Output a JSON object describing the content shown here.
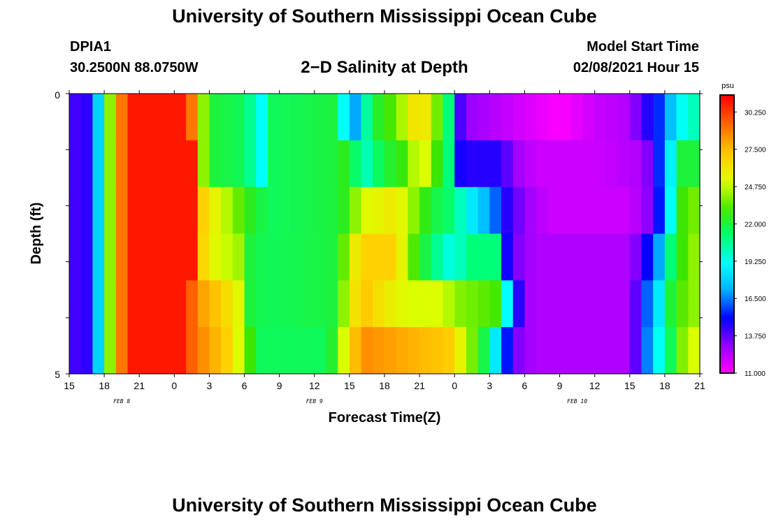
{
  "header": {
    "title": "University of Southern Mississippi Ocean Cube",
    "station": "DPIA1",
    "coords": "30.2500N 88.0750W",
    "subtitle": "2−D Salinity at Depth",
    "model_start_label": "Model Start Time",
    "model_start_value": "02/08/2021 Hour 15"
  },
  "footer": {
    "title": "University of Southern Mississippi Ocean Cube"
  },
  "chart_data": {
    "type": "heatmap",
    "title": "2-D Salinity at Depth",
    "xlabel": "Forecast Time(Z)",
    "ylabel": "Depth (ft)",
    "y_ticks": [
      "0",
      "5"
    ],
    "ylim": [
      0,
      5
    ],
    "x_tick_labels": [
      "15",
      "18",
      "21",
      "0",
      "3",
      "6",
      "9",
      "12",
      "15",
      "18",
      "21",
      "0",
      "3",
      "6",
      "9",
      "12",
      "15",
      "18",
      "21"
    ],
    "date_labels": [
      {
        "text": "FEB 8",
        "tick_index": 1.5
      },
      {
        "text": "FEB 9",
        "tick_index": 7
      },
      {
        "text": "FEB 10",
        "tick_index": 14.5
      }
    ],
    "hours_total": 54,
    "colorbar": {
      "unit": "psu",
      "min": 11.0,
      "max": 31.5,
      "tick_values": [
        30.25,
        27.5,
        24.75,
        22.0,
        19.25,
        16.5,
        13.75,
        11.0
      ],
      "tick_labels": [
        "30.250",
        "27.500",
        "24.750",
        "22.000",
        "19.250",
        "16.500",
        "13.750",
        "11.000"
      ]
    },
    "depth_layers": [
      [
        {
          "h": 0,
          "v": 14.0
        },
        {
          "h": 2,
          "v": 14.5
        },
        {
          "h": 2.5,
          "v": 18
        },
        {
          "h": 3.5,
          "v": 24
        },
        {
          "h": 4.5,
          "v": 29
        },
        {
          "h": 5.5,
          "v": 31
        },
        {
          "h": 10,
          "v": 31
        },
        {
          "h": 10.5,
          "v": 29
        },
        {
          "h": 11.5,
          "v": 24
        },
        {
          "h": 12.5,
          "v": 22
        },
        {
          "h": 15,
          "v": 21.5
        },
        {
          "h": 16.5,
          "v": 19
        },
        {
          "h": 17.5,
          "v": 21.5
        },
        {
          "h": 23,
          "v": 22
        },
        {
          "h": 23.5,
          "v": 19
        },
        {
          "h": 24.5,
          "v": 17
        },
        {
          "h": 25,
          "v": 19
        },
        {
          "h": 26,
          "v": 22
        },
        {
          "h": 28,
          "v": 23.5
        },
        {
          "h": 30,
          "v": 27
        },
        {
          "h": 31,
          "v": 25
        },
        {
          "h": 32.5,
          "v": 21
        },
        {
          "h": 33,
          "v": 15
        },
        {
          "h": 34,
          "v": 13
        },
        {
          "h": 36,
          "v": 12.5
        },
        {
          "h": 40,
          "v": 11.5
        },
        {
          "h": 42,
          "v": 11.0
        },
        {
          "h": 45,
          "v": 12
        },
        {
          "h": 48,
          "v": 12.5
        },
        {
          "h": 49,
          "v": 14
        },
        {
          "h": 50.5,
          "v": 15.5
        },
        {
          "h": 51.5,
          "v": 17.5
        },
        {
          "h": 53,
          "v": 20
        },
        {
          "h": 54,
          "v": 20
        }
      ],
      [
        {
          "h": 0,
          "v": 14.0
        },
        {
          "h": 2,
          "v": 14.5
        },
        {
          "h": 2.5,
          "v": 18
        },
        {
          "h": 3.5,
          "v": 24
        },
        {
          "h": 4.5,
          "v": 29
        },
        {
          "h": 5.5,
          "v": 31
        },
        {
          "h": 10.5,
          "v": 31
        },
        {
          "h": 11,
          "v": 29
        },
        {
          "h": 11.5,
          "v": 24
        },
        {
          "h": 12.5,
          "v": 22
        },
        {
          "h": 15,
          "v": 21.5
        },
        {
          "h": 16.5,
          "v": 19
        },
        {
          "h": 17.5,
          "v": 21.5
        },
        {
          "h": 23,
          "v": 22
        },
        {
          "h": 24,
          "v": 23
        },
        {
          "h": 25,
          "v": 19.5
        },
        {
          "h": 27,
          "v": 22
        },
        {
          "h": 29,
          "v": 23
        },
        {
          "h": 30,
          "v": 26
        },
        {
          "h": 31,
          "v": 24
        },
        {
          "h": 32.5,
          "v": 21
        },
        {
          "h": 33,
          "v": 15
        },
        {
          "h": 34,
          "v": 14.5
        },
        {
          "h": 37,
          "v": 14.5
        },
        {
          "h": 38,
          "v": 13
        },
        {
          "h": 40,
          "v": 12
        },
        {
          "h": 45,
          "v": 12
        },
        {
          "h": 49,
          "v": 12.5
        },
        {
          "h": 50,
          "v": 14
        },
        {
          "h": 51,
          "v": 17
        },
        {
          "h": 52.5,
          "v": 22
        },
        {
          "h": 54,
          "v": 22
        }
      ],
      [
        {
          "h": 0,
          "v": 14.0
        },
        {
          "h": 2,
          "v": 14.5
        },
        {
          "h": 2.5,
          "v": 18
        },
        {
          "h": 3.5,
          "v": 24
        },
        {
          "h": 4.5,
          "v": 29
        },
        {
          "h": 5.5,
          "v": 31
        },
        {
          "h": 10.5,
          "v": 31
        },
        {
          "h": 11,
          "v": 28
        },
        {
          "h": 12,
          "v": 26
        },
        {
          "h": 14,
          "v": 24
        },
        {
          "h": 16,
          "v": 22
        },
        {
          "h": 17.5,
          "v": 21.5
        },
        {
          "h": 23,
          "v": 22
        },
        {
          "h": 24,
          "v": 23
        },
        {
          "h": 25,
          "v": 25
        },
        {
          "h": 28,
          "v": 26
        },
        {
          "h": 31,
          "v": 22
        },
        {
          "h": 33,
          "v": 21
        },
        {
          "h": 34,
          "v": 19
        },
        {
          "h": 35,
          "v": 18
        },
        {
          "h": 36,
          "v": 17
        },
        {
          "h": 37.5,
          "v": 14.5
        },
        {
          "h": 39,
          "v": 13
        },
        {
          "h": 41,
          "v": 12
        },
        {
          "h": 48,
          "v": 12
        },
        {
          "h": 50,
          "v": 13.5
        },
        {
          "h": 51,
          "v": 17
        },
        {
          "h": 52.5,
          "v": 23
        },
        {
          "h": 54,
          "v": 24
        }
      ],
      [
        {
          "h": 0,
          "v": 14.0
        },
        {
          "h": 2,
          "v": 14.5
        },
        {
          "h": 2.5,
          "v": 18
        },
        {
          "h": 3.5,
          "v": 24
        },
        {
          "h": 4.5,
          "v": 29
        },
        {
          "h": 5.5,
          "v": 31
        },
        {
          "h": 10.5,
          "v": 31
        },
        {
          "h": 11,
          "v": 28
        },
        {
          "h": 12,
          "v": 25.5
        },
        {
          "h": 15,
          "v": 24
        },
        {
          "h": 15.5,
          "v": 22
        },
        {
          "h": 17,
          "v": 21.5
        },
        {
          "h": 23,
          "v": 22
        },
        {
          "h": 24,
          "v": 25
        },
        {
          "h": 25,
          "v": 27
        },
        {
          "h": 28,
          "v": 27
        },
        {
          "h": 29,
          "v": 24
        },
        {
          "h": 30,
          "v": 22.5
        },
        {
          "h": 32,
          "v": 20
        },
        {
          "h": 33,
          "v": 19
        },
        {
          "h": 34,
          "v": 21
        },
        {
          "h": 36.5,
          "v": 21
        },
        {
          "h": 37,
          "v": 16
        },
        {
          "h": 38,
          "v": 13.5
        },
        {
          "h": 39,
          "v": 13
        },
        {
          "h": 40,
          "v": 12.5
        },
        {
          "h": 48,
          "v": 12.5
        },
        {
          "h": 49,
          "v": 14
        },
        {
          "h": 50.5,
          "v": 17
        },
        {
          "h": 51.5,
          "v": 21
        },
        {
          "h": 53,
          "v": 24
        },
        {
          "h": 54,
          "v": 24
        }
      ],
      [
        {
          "h": 0,
          "v": 14.0
        },
        {
          "h": 2,
          "v": 14.5
        },
        {
          "h": 2.5,
          "v": 18
        },
        {
          "h": 3.5,
          "v": 24
        },
        {
          "h": 4.5,
          "v": 29
        },
        {
          "h": 5.5,
          "v": 31
        },
        {
          "h": 10,
          "v": 31
        },
        {
          "h": 10.5,
          "v": 29.5
        },
        {
          "h": 11.5,
          "v": 28
        },
        {
          "h": 13,
          "v": 27
        },
        {
          "h": 14,
          "v": 26
        },
        {
          "h": 15,
          "v": 24.5
        },
        {
          "h": 15.5,
          "v": 22
        },
        {
          "h": 17,
          "v": 21.5
        },
        {
          "h": 23,
          "v": 22
        },
        {
          "h": 23.5,
          "v": 24
        },
        {
          "h": 25,
          "v": 27.5
        },
        {
          "h": 27,
          "v": 26
        },
        {
          "h": 29,
          "v": 25
        },
        {
          "h": 32,
          "v": 25
        },
        {
          "h": 33,
          "v": 24
        },
        {
          "h": 37,
          "v": 23
        },
        {
          "h": 37.5,
          "v": 19
        },
        {
          "h": 38,
          "v": 16
        },
        {
          "h": 39,
          "v": 13
        },
        {
          "h": 40,
          "v": 12.5
        },
        {
          "h": 48,
          "v": 12.5
        },
        {
          "h": 49,
          "v": 15
        },
        {
          "h": 50.5,
          "v": 18.5
        },
        {
          "h": 51.5,
          "v": 22
        },
        {
          "h": 53,
          "v": 24
        },
        {
          "h": 54,
          "v": 24
        }
      ],
      [
        {
          "h": 0,
          "v": 14.0
        },
        {
          "h": 2,
          "v": 14.5
        },
        {
          "h": 2.5,
          "v": 18
        },
        {
          "h": 3.5,
          "v": 24
        },
        {
          "h": 4.5,
          "v": 29
        },
        {
          "h": 5.5,
          "v": 31
        },
        {
          "h": 10,
          "v": 31
        },
        {
          "h": 10.5,
          "v": 29.5
        },
        {
          "h": 12,
          "v": 28
        },
        {
          "h": 13.5,
          "v": 27
        },
        {
          "h": 14.5,
          "v": 25
        },
        {
          "h": 15.5,
          "v": 23
        },
        {
          "h": 16.5,
          "v": 21.5
        },
        {
          "h": 22,
          "v": 21.5
        },
        {
          "h": 23,
          "v": 23
        },
        {
          "h": 24,
          "v": 27
        },
        {
          "h": 25.5,
          "v": 28.5
        },
        {
          "h": 33,
          "v": 27
        },
        {
          "h": 34,
          "v": 24
        },
        {
          "h": 35,
          "v": 23.5
        },
        {
          "h": 36,
          "v": 20
        },
        {
          "h": 37,
          "v": 17
        },
        {
          "h": 38,
          "v": 13.5
        },
        {
          "h": 40,
          "v": 12.5
        },
        {
          "h": 48,
          "v": 12.5
        },
        {
          "h": 49,
          "v": 15
        },
        {
          "h": 50,
          "v": 18
        },
        {
          "h": 51.5,
          "v": 21.5
        },
        {
          "h": 53,
          "v": 25
        },
        {
          "h": 54,
          "v": 25
        }
      ]
    ]
  }
}
